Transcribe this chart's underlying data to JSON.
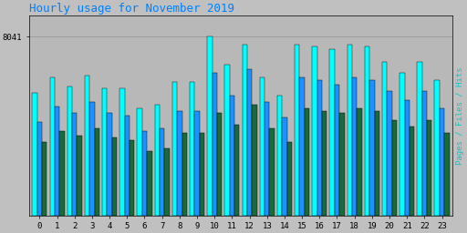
{
  "title": "Hourly usage for November 2019",
  "ylabel_right": "Pages / Files / Hits",
  "xlabel_labels": [
    "0",
    "1",
    "2",
    "3",
    "4",
    "5",
    "6",
    "7",
    "8",
    "9",
    "10",
    "11",
    "12",
    "13",
    "14",
    "15",
    "16",
    "17",
    "18",
    "19",
    "20",
    "21",
    "22",
    "23"
  ],
  "ytick_label": "8041",
  "background_color": "#c0c0c0",
  "plot_bg_color": "#b8b8b8",
  "title_color": "#0080ff",
  "title_fontsize": 9,
  "bar_width": 0.28,
  "hits": [
    5500,
    6200,
    5800,
    6300,
    5700,
    5700,
    4800,
    5000,
    6000,
    6000,
    8041,
    6800,
    7700,
    6200,
    5400,
    7700,
    7600,
    7500,
    7700,
    7600,
    6900,
    6400,
    6900,
    6100
  ],
  "files": [
    4200,
    4900,
    4600,
    5100,
    4600,
    4500,
    3800,
    3900,
    4700,
    4700,
    6400,
    5400,
    6600,
    5100,
    4400,
    6200,
    6100,
    5900,
    6200,
    6100,
    5600,
    5200,
    5600,
    4800
  ],
  "pages": [
    3300,
    3800,
    3600,
    3900,
    3500,
    3400,
    2900,
    3000,
    3700,
    3700,
    4600,
    4100,
    5000,
    3900,
    3300,
    4800,
    4700,
    4600,
    4800,
    4700,
    4300,
    4000,
    4300,
    3700
  ],
  "hits_color": "#00ffff",
  "files_color": "#1e90ff",
  "pages_color": "#1a6b3a",
  "grid_color": "#999999",
  "border_color": "#000000",
  "ylim_max": 9000,
  "ytick_val": 8041,
  "right_label_color": "#00cccc"
}
